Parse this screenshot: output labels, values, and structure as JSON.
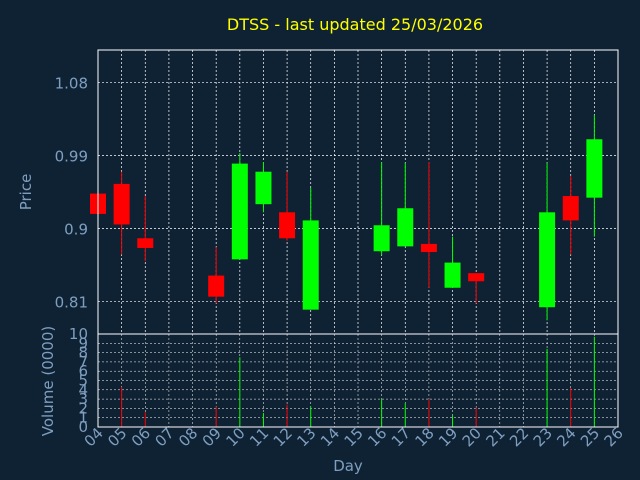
{
  "colors": {
    "background": "#0f2234",
    "title": "#ffff00",
    "axis_text": "#7f9fc0",
    "frame": "#ffffff",
    "grid": "#ffffff",
    "up": "#00ff00",
    "down": "#ff0000"
  },
  "chart_data": [
    {
      "type": "candlestick",
      "title": "DTSS - last updated 25/03/2026",
      "xlabel": "",
      "ylabel": "Price",
      "ylim": [
        0.77,
        1.12
      ],
      "y_ticks": [
        0.81,
        0.9,
        0.99,
        1.08
      ],
      "y_tick_labels": [
        "0.81",
        "0.9",
        "0.99",
        "1.08"
      ],
      "grid": true,
      "candles": [
        {
          "day": "04",
          "open": 0.943,
          "high": 0.943,
          "low": 0.918,
          "close": 0.918
        },
        {
          "day": "05",
          "open": 0.955,
          "high": 0.97,
          "low": 0.868,
          "close": 0.905
        },
        {
          "day": "06",
          "open": 0.888,
          "high": 0.94,
          "low": 0.86,
          "close": 0.876
        },
        {
          "day": "09",
          "open": 0.842,
          "high": 0.877,
          "low": 0.808,
          "close": 0.816
        },
        {
          "day": "10",
          "open": 0.862,
          "high": 0.993,
          "low": 0.862,
          "close": 0.98
        },
        {
          "day": "11",
          "open": 0.93,
          "high": 0.982,
          "low": 0.92,
          "close": 0.97
        },
        {
          "day": "12",
          "open": 0.92,
          "high": 0.97,
          "low": 0.885,
          "close": 0.888
        },
        {
          "day": "13",
          "open": 0.8,
          "high": 0.95,
          "low": 0.8,
          "close": 0.91
        },
        {
          "day": "16",
          "open": 0.872,
          "high": 0.982,
          "low": 0.867,
          "close": 0.904
        },
        {
          "day": "17",
          "open": 0.878,
          "high": 0.981,
          "low": 0.878,
          "close": 0.925
        },
        {
          "day": "18",
          "open": 0.881,
          "high": 0.982,
          "low": 0.827,
          "close": 0.871
        },
        {
          "day": "19",
          "open": 0.827,
          "high": 0.89,
          "low": 0.827,
          "close": 0.858
        },
        {
          "day": "20",
          "open": 0.845,
          "high": 0.845,
          "low": 0.808,
          "close": 0.835
        },
        {
          "day": "23",
          "open": 0.803,
          "high": 0.981,
          "low": 0.787,
          "close": 0.92
        },
        {
          "day": "24",
          "open": 0.94,
          "high": 0.965,
          "low": 0.868,
          "close": 0.91
        },
        {
          "day": "25",
          "open": 0.938,
          "high": 1.04,
          "low": 0.89,
          "close": 1.01
        }
      ]
    },
    {
      "type": "bar",
      "xlabel": "Day",
      "ylabel": "Volume (0000)",
      "ylim": [
        0,
        10
      ],
      "y_ticks": [
        0,
        1,
        2,
        3,
        4,
        5,
        6,
        7,
        8,
        9,
        10
      ],
      "y_tick_labels": [
        "0",
        "1",
        "2",
        "3",
        "4",
        "5",
        "6",
        "7",
        "8",
        "9",
        "10"
      ],
      "x_tick_labels": [
        "04",
        "05",
        "06",
        "07",
        "08",
        "09",
        "10",
        "11",
        "12",
        "13",
        "14",
        "15",
        "16",
        "17",
        "18",
        "19",
        "20",
        "21",
        "22",
        "23",
        "24",
        "25",
        "26"
      ],
      "values": [
        {
          "day": "04",
          "volume": 0.0
        },
        {
          "day": "05",
          "volume": 4.3
        },
        {
          "day": "06",
          "volume": 1.6
        },
        {
          "day": "09",
          "volume": 2.2
        },
        {
          "day": "10",
          "volume": 7.5
        },
        {
          "day": "11",
          "volume": 1.5
        },
        {
          "day": "12",
          "volume": 2.4
        },
        {
          "day": "13",
          "volume": 2.2
        },
        {
          "day": "16",
          "volume": 3.0
        },
        {
          "day": "17",
          "volume": 2.6
        },
        {
          "day": "18",
          "volume": 3.0
        },
        {
          "day": "19",
          "volume": 1.3
        },
        {
          "day": "20",
          "volume": 2.1
        },
        {
          "day": "23",
          "volume": 8.4
        },
        {
          "day": "24",
          "volume": 4.2
        },
        {
          "day": "25",
          "volume": 9.7
        }
      ]
    }
  ]
}
